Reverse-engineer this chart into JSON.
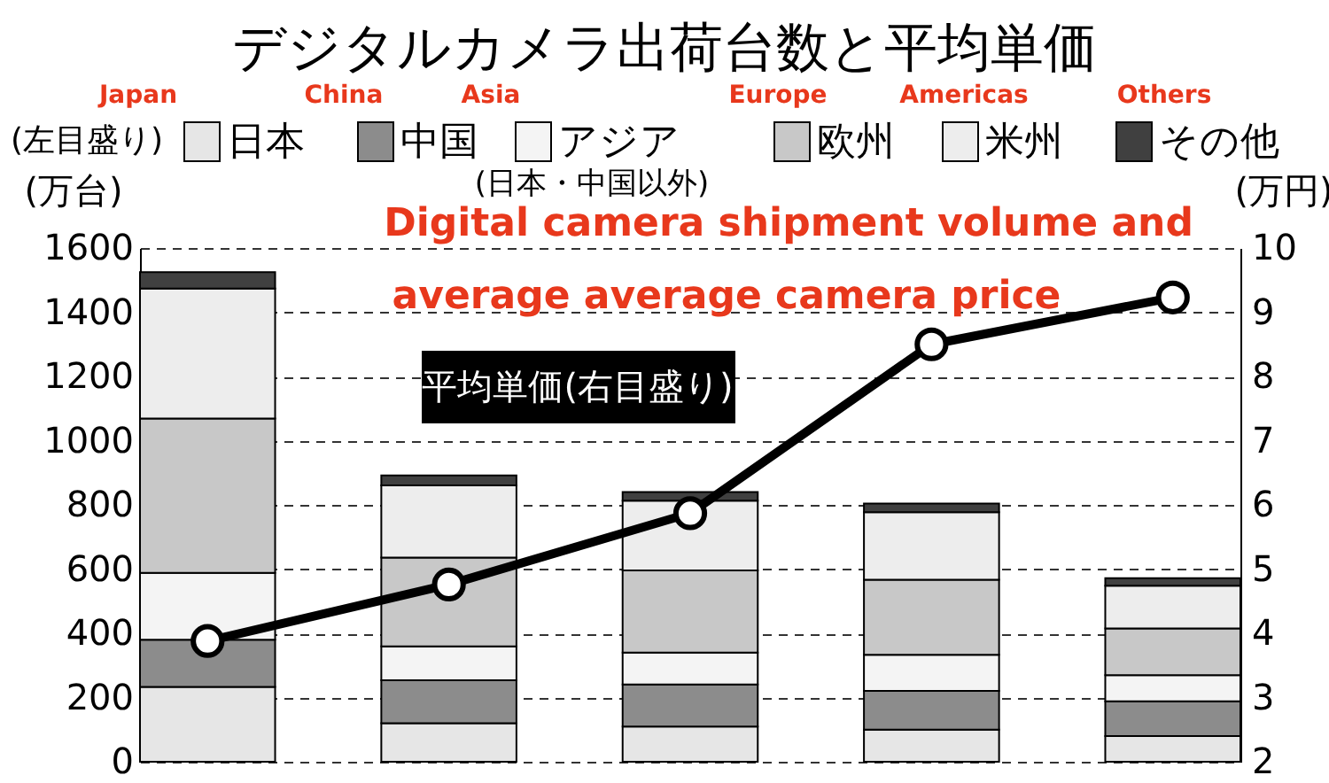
{
  "chart_data": {
    "type": "bar",
    "stacked": true,
    "title": "デジタルカメラ出荷台数と平均単価",
    "categories": [
      null,
      null,
      null,
      null,
      null
    ],
    "series": [
      {
        "name": "日本",
        "color": "#e6e6e6",
        "values": [
          233,
          120,
          110,
          100,
          80
        ]
      },
      {
        "name": "中国",
        "color": "#8c8c8c",
        "values": [
          147,
          134,
          131,
          121,
          108
        ]
      },
      {
        "name": "アジア",
        "color": "#f4f4f4",
        "values": [
          208,
          105,
          99,
          112,
          82
        ]
      },
      {
        "name": "欧州",
        "color": "#c8c8c8",
        "values": [
          481,
          277,
          256,
          234,
          145
        ]
      },
      {
        "name": "米州",
        "color": "#ededed",
        "values": [
          405,
          225,
          217,
          210,
          133
        ]
      },
      {
        "name": "その他",
        "color": "#404040",
        "values": [
          51,
          31,
          27,
          27,
          24
        ]
      },
      {
        "name": "平均単価(右目盛り)",
        "type": "line",
        "axis": "y2",
        "color": "#000000",
        "values": [
          3.88,
          4.76,
          5.87,
          8.5,
          9.23
        ]
      }
    ],
    "ylabel": "(万台)",
    "y2label": "(万円)",
    "ylim": [
      0,
      1600
    ],
    "yticks": [
      0,
      200,
      400,
      600,
      800,
      1000,
      1200,
      1400,
      1600
    ],
    "y2lim": [
      2,
      10
    ],
    "y2ticks": [
      2,
      3,
      4,
      5,
      6,
      7,
      8,
      9,
      10
    ],
    "grid": "y",
    "legend": "top",
    "marker": "circle",
    "line_style": "solid",
    "annotations": [
      "(左目盛り)",
      "(日本・中国以外)",
      "Digital camera shipment volume and",
      "average average camera price",
      "Japan",
      "China",
      "Asia",
      "Europe",
      "Americas",
      "Others"
    ]
  }
}
